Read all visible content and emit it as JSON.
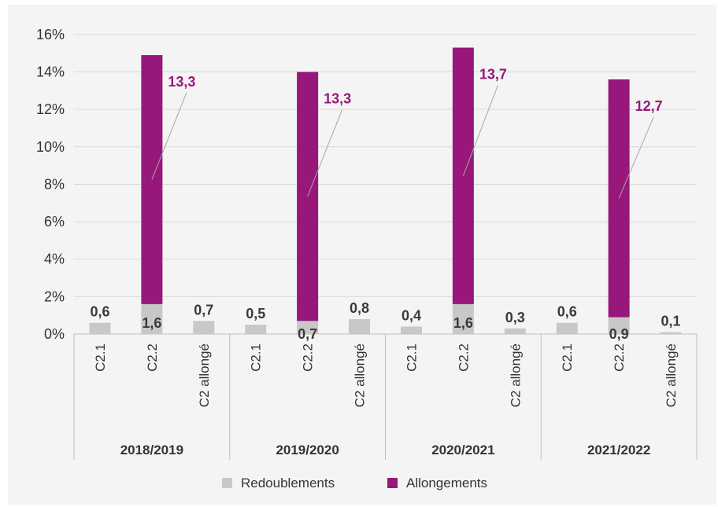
{
  "colors": {
    "redoublements": "#c8c8c8",
    "allongements": "#97187a",
    "grid": "#d9d9d9",
    "label_line": "#a6a6a6"
  },
  "chart_data": {
    "type": "bar",
    "stacked": true,
    "y_unit": "%",
    "ylim": [
      0,
      16
    ],
    "y_ticks": [
      "0%",
      "2%",
      "4%",
      "6%",
      "8%",
      "10%",
      "12%",
      "14%",
      "16%"
    ],
    "groups": [
      "2018/2019",
      "2019/2020",
      "2020/2021",
      "2021/2022"
    ],
    "categories": [
      "C2.1",
      "C2.2",
      "C2 allongé"
    ],
    "series": [
      {
        "name": "Redoublements",
        "values": [
          [
            0.6,
            1.6,
            0.7
          ],
          [
            0.5,
            0.7,
            0.8
          ],
          [
            0.4,
            1.6,
            0.3
          ],
          [
            0.6,
            0.9,
            0.1
          ]
        ],
        "labels": [
          [
            "0,6",
            "1,6",
            "0,7"
          ],
          [
            "0,5",
            "0,7",
            "0,8"
          ],
          [
            "0,4",
            "1,6",
            "0,3"
          ],
          [
            "0,6",
            "0,9",
            "0,1"
          ]
        ]
      },
      {
        "name": "Allongements",
        "values": [
          [
            0,
            13.3,
            0
          ],
          [
            0,
            13.3,
            0
          ],
          [
            0,
            13.7,
            0
          ],
          [
            0,
            12.7,
            0
          ]
        ],
        "labels": [
          [
            "",
            "13,3",
            ""
          ],
          [
            "",
            "13,3",
            ""
          ],
          [
            "",
            "13,7",
            ""
          ],
          [
            "",
            "12,7",
            ""
          ]
        ]
      }
    ],
    "legend": {
      "position": "bottom",
      "entries": [
        "Redoublements",
        "Allongements"
      ]
    },
    "grid": true
  }
}
